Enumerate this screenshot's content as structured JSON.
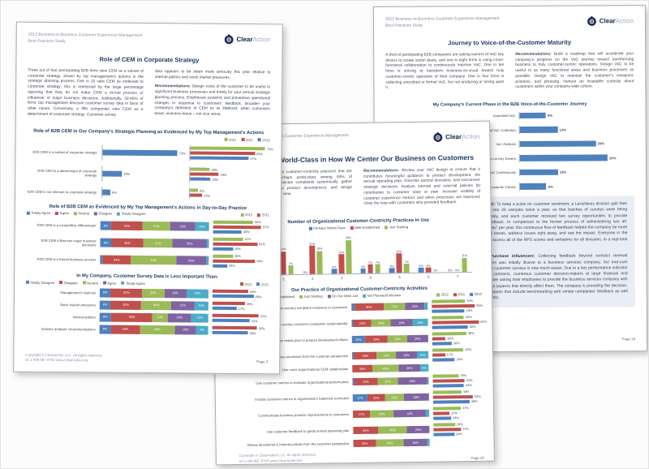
{
  "palette": {
    "blue": "#4f81bd",
    "red": "#c0504d",
    "green": "#9bbb59",
    "purple": "#8064a2",
    "cyan": "#4bacc6",
    "navy": "#1f3b66"
  },
  "logo": {
    "part1": "Clear",
    "part2": "Action"
  },
  "header": {
    "line1": "2012 Business-to-Business Customer Experience Management",
    "line2": "Best Practices Study"
  },
  "footer": {
    "line1": "Copyright © ClearAction LLC. All rights reserved.",
    "line2": "tel 1 408 687 9700   www.ClearAction.biz"
  },
  "pages": {
    "left": {
      "title": "Role of CEM in Corporate Strategy",
      "col1": "Three out of four participating B2B firms view CEM as a subset of corporate strategy, shown by top management's actions in the strategic planning process. One in 10 view CEM as irrelevant to corporate strategy; this is reinforced by the large percentage reporting that they do not make CEM a formal process or influencer of major business decisions. Additionally, 30-40% of firms' top management discount customer survey data in favor of other inputs. Conversely, a fifth companies view CEM as a determinant of corporate strategy. Customer survey",
      "col2_p1": "data appears to be taken more seriously this year relative to internal politics and stock market pressures.",
      "rec_label": "Recommendations:",
      "col2_p2": "Design voice of the customer to be useful to significant business processes and timely for your annual strategic planning process. Emphasize systemic and preventive operational changes in response to customers' feedback. Broaden your company's definition of CEM as its lifeblood: when customers leave, investors leave – not vice versa.",
      "page_num": "Page 3"
    },
    "middle": {
      "title": "Journey to World-Class in How We Center Our Business on Customers",
      "col1": "Participating B2B firms use customer-centricity practices that are well-established and perhaps world-class among 45% of companies. Firms communicate complaints systemically, gather customer needs prior to product development, and design processes from customers' view.",
      "rec_label": "Recommendations:",
      "col2": "Review your VoC design to ensure that it contributes meaningful guidance to product development, the annual operating plan, front-line tactical decisions, and executives' strategic decisions. Analyze internal and external policies for contribution to customer ease or pain. Increase visibility of customer experience metrics and when processes are improved, close the loop with customers who provided feedback.",
      "page_num": "Page 20"
    },
    "right": {
      "title": "Journey to Voice-of-the-Customer Maturity",
      "col1": "A third of participating B2B companies are asking owners of VoC key drivers to create action plans, and one in eight firms is using cross-functional collaboration to continuously improve VoC. One in ten firms is striving to transform business-as-usual toward truly customer-centric operation of their company. One in four firms is collecting anecdotal or formal VoC, but not analyzing or acting upon it.",
      "rec_label": "Recommendations:",
      "col2": "Build a roadmap that will accelerate your company's progress on the VoC journey toward transforming business to truly customer-centric operations. Design VoC to be useful to as many functional areas and business processes as possible. Design VoC to maintain the customer's viewpoint, priorities, and phrasing. Nurture an insatiable curiosity about customers within your company-wide culture.",
      "sidebar": [
        {
          "lead": "Real-time VoC:",
          "text": "To keep a pulse on customer sentiment, a LexisNexis division split their customer list into 26 samples twice a year, so that batches of surveys were being launched weekly, and each customer received two survey opportunities to provide structured feedback. In comparison to the former process of administering two all-inclusive “waves” per year, this continuous flow of feedback helped the company be more nimble, notice trends, address issues right away, and see the impact. Everyone in the company can access all of the NPS scores and verbatims for all divisions, in a real-time portal."
        },
        {
          "lead": "VoC from Purchase Influencers:",
          "text": "Collecting feedback beyond contract renewal decision-makers was initially illusive to a business services company, but end-user involvement in customer surveys is now much easier. Due to a key performance indicator for awarding contracts, numerous customer decision-makers at large financial and medical firms are asking their employees to provide the business services company with feedback about aspects that directly affect them. The company is providing the decision-makers with reports that include benchmarking with similar companies' feedback as well as useful insights."
        }
      ],
      "page_num": "Page 16"
    }
  },
  "chart_data": [
    {
      "id": "cem-strategic-planning",
      "type": "bar",
      "title": "Role of B2B CEM in Our Company's Strategic Planning as Evidenced by My Top Management's Actions",
      "legend": [
        {
          "label": "2012",
          "color": "green"
        },
        {
          "label": "2011",
          "color": "red"
        },
        {
          "label": "2010",
          "color": "blue"
        }
      ],
      "xmax": 80,
      "rows": [
        {
          "label": "B2B CEM is a subset of corporate strategy",
          "current": 73,
          "trend": [
            73,
            63,
            57
          ]
        },
        {
          "label": "B2B CEM is a determinant of corporate strategy",
          "current": 19,
          "trend": [
            19,
            28,
            20
          ]
        },
        {
          "label": "B2B CEM is not relevant to corporate strategy",
          "current": 8,
          "trend": [
            8,
            12,
            0
          ]
        }
      ]
    },
    {
      "id": "cem-day-to-day",
      "type": "stacked-bar",
      "title": "Role of B2B CEM as Evidenced by My Top Management's Actions in Day-to-Day Practice",
      "stack_legend": [
        {
          "label": "Totally Agree",
          "color": "blue"
        },
        {
          "label": "Agree",
          "color": "red"
        },
        {
          "label": "Neutral",
          "color": "green"
        },
        {
          "label": "Disagree",
          "color": "purple"
        },
        {
          "label": "Totally Disagree",
          "color": "cyan"
        }
      ],
      "trend_legend": [
        {
          "label": "2012",
          "color": "green"
        },
        {
          "label": "2011",
          "color": "red"
        }
      ],
      "trend_colors": [
        "green",
        "red",
        "blue"
      ],
      "trend_max": 75,
      "min_label": 7,
      "rows": [
        {
          "label": "B2B CEM is a competitive differentiator",
          "stack": [
            8,
            32,
            27,
            23,
            10
          ],
          "trend": [
            56,
            67,
            40
          ]
        },
        {
          "label": "B2B CEM influences major business decisions",
          "stack": [
            8,
            30,
            27,
            32,
            3
          ],
          "trend": [
            42,
            62,
            28
          ]
        },
        {
          "label": "B2B CEM is a formal business process",
          "stack": [
            3,
            24,
            44,
            26,
            3
          ],
          "trend": [
            28,
            59,
            20
          ]
        }
      ]
    },
    {
      "id": "survey-data-less-important",
      "type": "stacked-bar",
      "title": "In My Company, Customer Survey Data is Less Important Than:",
      "stack_legend": [
        {
          "label": "Totally Disagree",
          "color": "blue"
        },
        {
          "label": "Disagree",
          "color": "red"
        },
        {
          "label": "Neutral",
          "color": "green"
        },
        {
          "label": "Agree",
          "color": "purple"
        },
        {
          "label": "Totally Agree",
          "color": "cyan"
        }
      ],
      "trend_legend": [
        {
          "label": "2012",
          "color": "red"
        },
        {
          "label": "2011",
          "color": "blue"
        }
      ],
      "trend_colors": [
        "red",
        "blue"
      ],
      "trend_max": 60,
      "min_label": 7,
      "rows": [
        {
          "label": "Management's instincts",
          "stack": [
            8,
            32,
            20,
            20,
            20
          ],
          "trend": [
            40,
            46
          ]
        },
        {
          "label": "Stock market pressures",
          "stack": [
            8,
            31,
            30,
            21,
            10
          ],
          "trend": [
            36,
            27
          ]
        },
        {
          "label": "Internal politics",
          "stack": [
            8,
            40,
            10,
            20,
            12
          ],
          "trend": [
            52,
            42
          ]
        },
        {
          "label": "Industry analysts' recommendations",
          "stack": [
            8,
            29,
            35,
            19,
            9
          ],
          "trend": [
            50,
            40
          ]
        }
      ]
    },
    {
      "id": "centricity-practices-in-use",
      "type": "column",
      "title": "Number of Organizational Customer-Centricity Practices in Use",
      "legend": [
        {
          "label": "Perhaps World-Class",
          "color": "blue"
        },
        {
          "label": "Well-Established",
          "color": "red"
        },
        {
          "label": "Just Starting",
          "color": "green"
        }
      ],
      "categories": [
        "1",
        "2",
        "3",
        "4",
        "5",
        "6",
        "7"
      ],
      "ymax": 30,
      "series": [
        {
          "name": "Perhaps World-Class",
          "color": "blue",
          "values": [
            7,
            0,
            4,
            4,
            4,
            4,
            0
          ]
        },
        {
          "name": "Well-Established",
          "color": "red",
          "values": [
            18,
            22,
            15,
            7,
            15,
            4,
            0
          ]
        },
        {
          "name": "Just Starting",
          "color": "green",
          "values": [
            7,
            18,
            26,
            7,
            7,
            0,
            11
          ]
        }
      ]
    },
    {
      "id": "centricity-activities",
      "type": "stacked-bar",
      "title": "Our Practice of Organizational Customer-Centricity Activities",
      "stack_legend": [
        {
          "label": "World-Class",
          "color": "blue"
        },
        {
          "label": "Well-Established",
          "color": "red"
        },
        {
          "label": "Just Starting",
          "color": "green"
        },
        {
          "label": "On Our Wish List",
          "color": "purple"
        },
        {
          "label": "Not Planned/Unknown",
          "color": "cyan"
        }
      ],
      "trend_legend": [
        {
          "label": "2012",
          "color": "green"
        },
        {
          "label": "2011",
          "color": "red"
        },
        {
          "label": "2010",
          "color": "blue"
        }
      ],
      "trend_colors": [
        "green",
        "red",
        "blue"
      ],
      "trend_max": 70,
      "min_label": 8,
      "rows": [
        {
          "label": "Communicate (non-survey) complaint resolution to customers",
          "stack": [
            5,
            40,
            27,
            23,
            5
          ],
          "trend": [
            45,
            58,
            44
          ]
        },
        {
          "label": "Resolve (non-survey) customer complaints systematically",
          "stack": [
            3,
            23,
            26,
            30,
            18
          ],
          "trend": [
            43,
            63,
            48
          ]
        },
        {
          "label": "Identify customer needs prior to product development efforts",
          "stack": [
            13,
            33,
            25,
            29,
            0
          ],
          "trend": [
            46,
            18,
            26
          ]
        },
        {
          "label": "Design business processes from the customer perspective",
          "stack": [
            3,
            33,
            25,
            29,
            10
          ],
          "trend": [
            42,
            17,
            30
          ]
        },
        {
          "label": "Use cross-organizational CEM collaboration",
          "stack": [
            0,
            28,
            40,
            30,
            8
          ],
          "trend": []
        },
        {
          "label": "Use customer metrics to evaluate organizational performance",
          "stack": [
            3,
            26,
            22,
            35,
            3
          ],
          "trend": [
            35,
            43,
            42
          ]
        },
        {
          "label": "Include customer metrics in organization's balanced scorecard",
          "stack": [
            17,
            23,
            25,
            38,
            0
          ],
          "trend": [
            38,
            54,
            49
          ]
        },
        {
          "label": "Communicate business process improvements to customers",
          "stack": [
            0,
            17,
            29,
            42,
            5
          ],
          "trend": [
            37,
            22,
            24
          ]
        },
        {
          "label": "Use customer feedback to guide annual operating plan",
          "stack": [
            0,
            34,
            40,
            29,
            0
          ],
          "trend": [
            29,
            37,
            28
          ]
        },
        {
          "label": "Renew all external & internal policies from the customer perspective",
          "stack": [
            0,
            34,
            45,
            36,
            5
          ],
          "trend": []
        }
      ]
    },
    {
      "id": "voc-journey-phase",
      "type": "hbar",
      "title": "My Company's Current Phase in the B2B Voice-of-the-Customer Journey",
      "xmax": 38,
      "rows": [
        {
          "label": "Anecdotal VoC",
          "value": 9
        },
        {
          "label": "Formal VoC Collection",
          "value": 13
        },
        {
          "label": "VoC Analysis",
          "value": 26
        },
        {
          "label": "Action Plans on Key Drivers",
          "value": 30
        },
        {
          "label": "Improving VoC Continuously",
          "value": 13
        },
        {
          "label": "Transforming to Customer-Centric",
          "value": 9
        }
      ]
    }
  ]
}
